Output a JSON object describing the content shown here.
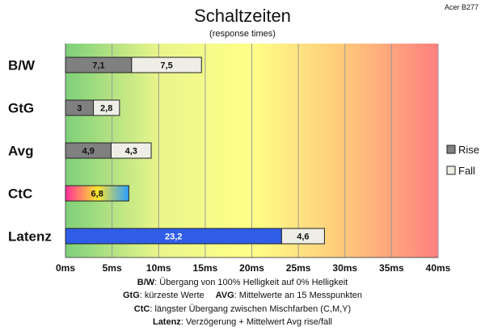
{
  "title": "Schaltzeiten",
  "subtitle": "(response times)",
  "corner_label": "Acer B277",
  "colors": {
    "rise": "#808080",
    "fall": "#efeee6",
    "latency": "#2f5de8",
    "gradient": [
      "#7ed07a",
      "#e9f58a",
      "#ffff88",
      "#ffc87a",
      "#ff8080"
    ],
    "ctc_gradient": [
      "#ff2d9a",
      "#ffe52e",
      "#2aa0ff"
    ]
  },
  "chart_data": {
    "type": "bar",
    "orientation": "horizontal",
    "stacked": true,
    "categories": [
      "B/W",
      "GtG",
      "Avg",
      "CtC",
      "Latenz"
    ],
    "series": [
      {
        "name": "Rise",
        "values": [
          7.1,
          3,
          4.9,
          null,
          null
        ]
      },
      {
        "name": "Fall",
        "values": [
          7.5,
          2.8,
          4.3,
          null,
          4.6
        ]
      }
    ],
    "ctc_value": 6.8,
    "latency_value": 23.2,
    "data_labels": [
      [
        "7,1",
        "7,5"
      ],
      [
        "3",
        "2,8"
      ],
      [
        "4,9",
        "4,3"
      ],
      [
        "6,8"
      ],
      [
        "23,2",
        "4,6"
      ]
    ],
    "xlim": [
      0,
      40
    ],
    "xticks": [
      "0ms",
      "5ms",
      "10ms",
      "15ms",
      "20ms",
      "25ms",
      "30ms",
      "35ms",
      "40ms"
    ],
    "grid": true,
    "legend_position": "right",
    "legend": [
      {
        "label": "Rise",
        "color": "#808080"
      },
      {
        "label": "Fall",
        "color": "#efeee6"
      }
    ]
  },
  "notes": {
    "bw_key": "B/W",
    "bw_text": ":  Übergang von 100% Helligkeit auf 0% Helligkeit",
    "gtg_key": "GtG",
    "gtg_text": ": kürzeste  Werte",
    "avg_key": "AVG",
    "avg_text": ": Mittelwerte  an 15 Messpunkten",
    "ctc_key": "CtC",
    "ctc_text": ": längster Übergang  zwischen Mischfarben  (C,M,Y)",
    "latenz_key": "Latenz",
    "latenz_text": ": Verzögerung  + Mittelwert Avg rise/fall"
  }
}
